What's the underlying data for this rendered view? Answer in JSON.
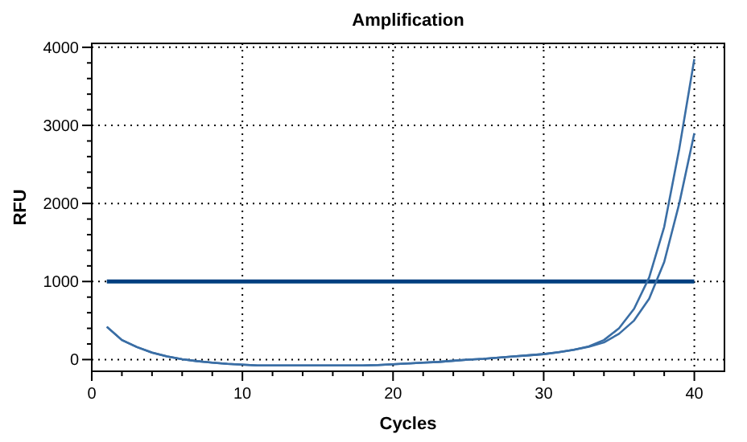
{
  "chart_data": {
    "type": "line",
    "title": "Amplification",
    "xlabel": "Cycles",
    "ylabel": "RFU",
    "x": [
      1,
      2,
      3,
      4,
      5,
      6,
      7,
      8,
      9,
      10,
      11,
      12,
      13,
      14,
      15,
      16,
      17,
      18,
      19,
      20,
      21,
      22,
      23,
      24,
      25,
      26,
      27,
      28,
      29,
      30,
      31,
      32,
      33,
      34,
      35,
      36,
      37,
      38,
      39,
      40
    ],
    "series": [
      {
        "color": "#3a6ea5",
        "values": [
          420,
          250,
          160,
          90,
          40,
          5,
          -20,
          -40,
          -55,
          -65,
          -75,
          -75,
          -75,
          -75,
          -75,
          -75,
          -75,
          -75,
          -70,
          -60,
          -50,
          -40,
          -30,
          -15,
          0,
          10,
          25,
          40,
          55,
          70,
          95,
          125,
          170,
          250,
          400,
          650,
          1050,
          1700,
          2700,
          3850
        ]
      },
      {
        "color": "#3a6ea5",
        "values": [
          420,
          250,
          160,
          90,
          40,
          5,
          -20,
          -40,
          -55,
          -65,
          -75,
          -75,
          -75,
          -75,
          -75,
          -75,
          -75,
          -75,
          -70,
          -60,
          -50,
          -40,
          -30,
          -15,
          0,
          10,
          25,
          40,
          55,
          70,
          95,
          125,
          165,
          220,
          330,
          500,
          780,
          1250,
          2000,
          2900
        ]
      }
    ],
    "ref_lines": [
      {
        "axis": "y",
        "value": 1000,
        "color": "#003f7f"
      }
    ],
    "xlim": [
      0,
      42
    ],
    "ylim": [
      -150,
      4050
    ],
    "xticks": [
      0,
      {
        "value": 2,
        "label": null
      },
      {
        "value": 4,
        "label": null
      },
      {
        "value": 6,
        "label": null
      },
      {
        "value": 8,
        "label": null
      },
      10,
      {
        "value": 12,
        "label": null
      },
      {
        "value": 14,
        "label": null
      },
      {
        "value": 16,
        "label": null
      },
      {
        "value": 18,
        "label": null
      },
      20,
      {
        "value": 22,
        "label": null
      },
      {
        "value": 24,
        "label": null
      },
      {
        "value": 26,
        "label": null
      },
      {
        "value": 28,
        "label": null
      },
      30,
      {
        "value": 32,
        "label": null
      },
      {
        "value": 34,
        "label": null
      },
      {
        "value": 36,
        "label": null
      },
      {
        "value": 38,
        "label": null
      },
      40
    ],
    "yticks": [
      0,
      {
        "value": 200,
        "label": null
      },
      {
        "value": 400,
        "label": null
      },
      {
        "value": 600,
        "label": null
      },
      {
        "value": 800,
        "label": null
      },
      1000,
      {
        "value": 1200,
        "label": null
      },
      {
        "value": 1400,
        "label": null
      },
      {
        "value": 1600,
        "label": null
      },
      {
        "value": 1800,
        "label": null
      },
      2000,
      {
        "value": 2200,
        "label": null
      },
      {
        "value": 2400,
        "label": null
      },
      {
        "value": 2600,
        "label": null
      },
      {
        "value": 2800,
        "label": null
      },
      3000,
      {
        "value": 3200,
        "label": null
      },
      {
        "value": 3400,
        "label": null
      },
      {
        "value": 3600,
        "label": null
      },
      {
        "value": 3800,
        "label": null
      },
      4000
    ],
    "grid": true,
    "marker": "none",
    "line_style": "solid"
  }
}
